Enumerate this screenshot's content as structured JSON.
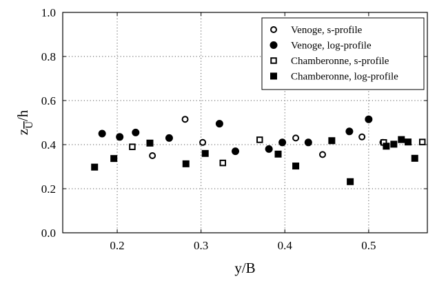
{
  "chart_data": {
    "type": "scatter",
    "xlabel": "y/B",
    "ylabel": {
      "base": "z",
      "sub": "U",
      "suffix": "/h"
    },
    "xlim": [
      0.135,
      0.57
    ],
    "ylim": [
      0.0,
      1.0
    ],
    "xticks": [
      "0.2",
      "0.3",
      "0.4",
      "0.5"
    ],
    "xtick_values": [
      0.2,
      0.3,
      0.4,
      0.5
    ],
    "yticks": [
      "0.0",
      "0.2",
      "0.4",
      "0.6",
      "0.8",
      "1.0"
    ],
    "ytick_values": [
      0.0,
      0.2,
      0.4,
      0.6,
      0.8,
      1.0
    ],
    "grid": true,
    "legend_placement": "top-right",
    "series": [
      {
        "name": "Venoge, s-profile",
        "marker": "circle-open",
        "points": [
          [
            0.242,
            0.35
          ],
          [
            0.281,
            0.515
          ],
          [
            0.302,
            0.41
          ],
          [
            0.413,
            0.43
          ],
          [
            0.445,
            0.355
          ],
          [
            0.492,
            0.435
          ],
          [
            0.517,
            0.41
          ]
        ]
      },
      {
        "name": "Venoge, log-profile",
        "marker": "circle-filled",
        "points": [
          [
            0.182,
            0.45
          ],
          [
            0.203,
            0.435
          ],
          [
            0.222,
            0.455
          ],
          [
            0.262,
            0.43
          ],
          [
            0.322,
            0.495
          ],
          [
            0.341,
            0.37
          ],
          [
            0.381,
            0.38
          ],
          [
            0.397,
            0.41
          ],
          [
            0.428,
            0.41
          ],
          [
            0.477,
            0.46
          ],
          [
            0.5,
            0.515
          ]
        ]
      },
      {
        "name": "Chamberonne, s-profile",
        "marker": "square-open",
        "points": [
          [
            0.218,
            0.39
          ],
          [
            0.326,
            0.317
          ],
          [
            0.37,
            0.422
          ],
          [
            0.518,
            0.41
          ],
          [
            0.564,
            0.412
          ]
        ]
      },
      {
        "name": "Chamberonne, log-profile",
        "marker": "square-filled",
        "points": [
          [
            0.173,
            0.298
          ],
          [
            0.196,
            0.337
          ],
          [
            0.239,
            0.407
          ],
          [
            0.282,
            0.313
          ],
          [
            0.305,
            0.36
          ],
          [
            0.392,
            0.357
          ],
          [
            0.413,
            0.303
          ],
          [
            0.456,
            0.418
          ],
          [
            0.478,
            0.232
          ],
          [
            0.521,
            0.393
          ],
          [
            0.53,
            0.402
          ],
          [
            0.539,
            0.423
          ],
          [
            0.547,
            0.412
          ],
          [
            0.555,
            0.338
          ]
        ]
      }
    ]
  }
}
